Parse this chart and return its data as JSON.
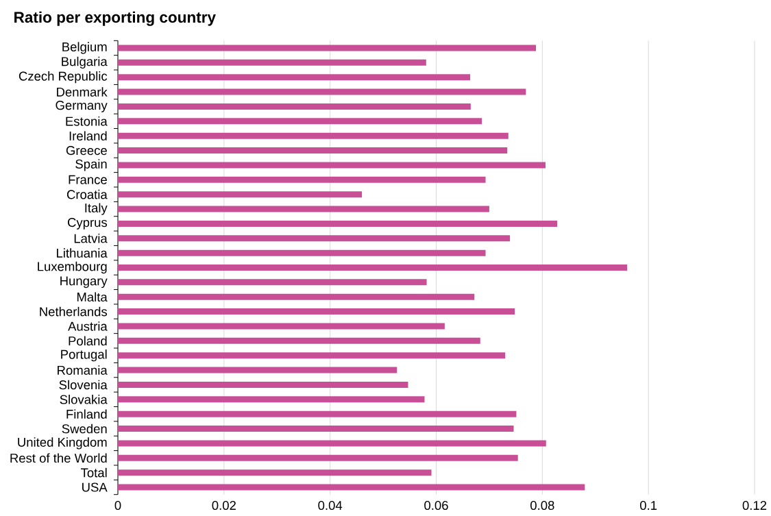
{
  "chart_data": {
    "type": "bar",
    "orientation": "horizontal",
    "title": "Ratio per exporting country",
    "categories": [
      "Belgium",
      "Bulgaria",
      "Czech Republic",
      "Denmark",
      "Germany",
      "Estonia",
      "Ireland",
      "Greece",
      "Spain",
      "France",
      "Croatia",
      "Italy",
      "Cyprus",
      "Latvia",
      "Lithuania",
      "Luxembourg",
      "Hungary",
      "Malta",
      "Netherlands",
      "Austria",
      "Poland",
      "Portugal",
      "Romania",
      "Slovenia",
      "Slovakia",
      "Finland",
      "Sweden",
      "United Kingdom",
      "Rest of the World",
      "Total",
      "USA"
    ],
    "values": [
      0.0788,
      0.0581,
      0.0664,
      0.0769,
      0.0665,
      0.0686,
      0.0736,
      0.0734,
      0.0806,
      0.0693,
      0.046,
      0.07,
      0.0828,
      0.0739,
      0.0693,
      0.096,
      0.0582,
      0.0672,
      0.0748,
      0.0616,
      0.0683,
      0.073,
      0.0526,
      0.0547,
      0.0578,
      0.0751,
      0.0746,
      0.0807,
      0.0754,
      0.0591,
      0.088
    ],
    "color": "#c84f96",
    "xlim": [
      0,
      0.12
    ],
    "xticks": [
      0,
      0.02,
      0.04,
      0.06,
      0.08,
      0.1,
      0.12
    ],
    "grid": "x"
  }
}
